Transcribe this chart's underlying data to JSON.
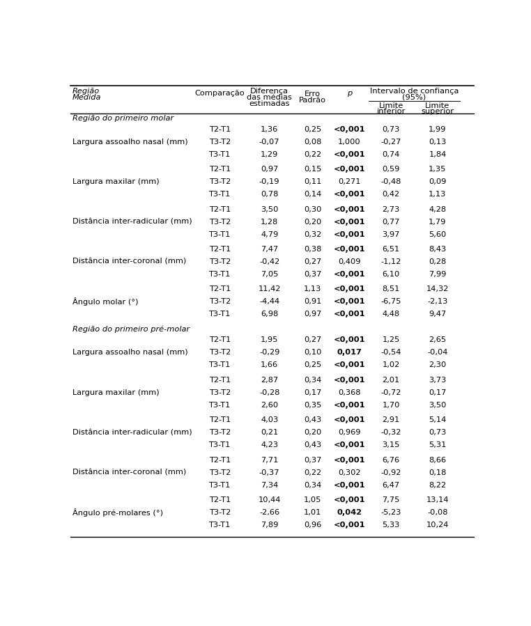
{
  "sections": [
    {
      "section_title": "Região do primeiro molar",
      "measures": [
        {
          "name": "Largura assoalho nasal (mm)",
          "rows": [
            [
              "T2-T1",
              "1,36",
              "0,25",
              "<0,001",
              "0,73",
              "1,99"
            ],
            [
              "T3-T2",
              "-0,07",
              "0,08",
              "1,000",
              "-0,27",
              "0,13"
            ],
            [
              "T3-T1",
              "1,29",
              "0,22",
              "<0,001",
              "0,74",
              "1,84"
            ]
          ],
          "bold_p": [
            true,
            false,
            true
          ]
        },
        {
          "name": "Largura maxilar (mm)",
          "rows": [
            [
              "T2-T1",
              "0,97",
              "0,15",
              "<0,001",
              "0,59",
              "1,35"
            ],
            [
              "T3-T2",
              "-0,19",
              "0,11",
              "0,271",
              "-0,48",
              "0,09"
            ],
            [
              "T3-T1",
              "0,78",
              "0,14",
              "<0,001",
              "0,42",
              "1,13"
            ]
          ],
          "bold_p": [
            true,
            false,
            true
          ]
        },
        {
          "name": "Distância inter-radicular (mm)",
          "rows": [
            [
              "T2-T1",
              "3,50",
              "0,30",
              "<0,001",
              "2,73",
              "4,28"
            ],
            [
              "T3-T2",
              "1,28",
              "0,20",
              "<0,001",
              "0,77",
              "1,79"
            ],
            [
              "T3-T1",
              "4,79",
              "0,32",
              "<0,001",
              "3,97",
              "5,60"
            ]
          ],
          "bold_p": [
            true,
            true,
            true
          ]
        },
        {
          "name": "Distância inter-coronal (mm)",
          "rows": [
            [
              "T2-T1",
              "7,47",
              "0,38",
              "<0,001",
              "6,51",
              "8,43"
            ],
            [
              "T3-T2",
              "-0,42",
              "0,27",
              "0,409",
              "-1,12",
              "0,28"
            ],
            [
              "T3-T1",
              "7,05",
              "0,37",
              "<0,001",
              "6,10",
              "7,99"
            ]
          ],
          "bold_p": [
            true,
            false,
            true
          ]
        },
        {
          "name": "Ângulo molar (°)",
          "rows": [
            [
              "T2-T1",
              "11,42",
              "1,13",
              "<0,001",
              "8,51",
              "14,32"
            ],
            [
              "T3-T2",
              "-4,44",
              "0,91",
              "<0,001",
              "-6,75",
              "-2,13"
            ],
            [
              "T3-T1",
              "6,98",
              "0,97",
              "<0,001",
              "4,48",
              "9,47"
            ]
          ],
          "bold_p": [
            true,
            true,
            true
          ]
        }
      ]
    },
    {
      "section_title": "Região do primeiro pré-molar",
      "measures": [
        {
          "name": "Largura assoalho nasal (mm)",
          "rows": [
            [
              "T2-T1",
              "1,95",
              "0,27",
              "<0,001",
              "1,25",
              "2,65"
            ],
            [
              "T3-T2",
              "-0,29",
              "0,10",
              "0,017",
              "-0,54",
              "-0,04"
            ],
            [
              "T3-T1",
              "1,66",
              "0,25",
              "<0,001",
              "1,02",
              "2,30"
            ]
          ],
          "bold_p": [
            true,
            true,
            true
          ]
        },
        {
          "name": "Largura maxilar (mm)",
          "rows": [
            [
              "T2-T1",
              "2,87",
              "0,34",
              "<0,001",
              "2,01",
              "3,73"
            ],
            [
              "T3-T2",
              "-0,28",
              "0,17",
              "0,368",
              "-0,72",
              "0,17"
            ],
            [
              "T3-T1",
              "2,60",
              "0,35",
              "<0,001",
              "1,70",
              "3,50"
            ]
          ],
          "bold_p": [
            true,
            false,
            true
          ]
        },
        {
          "name": "Distância inter-radicular (mm)",
          "rows": [
            [
              "T2-T1",
              "4,03",
              "0,43",
              "<0,001",
              "2,91",
              "5,14"
            ],
            [
              "T3-T2",
              "0,21",
              "0,20",
              "0,969",
              "-0,32",
              "0,73"
            ],
            [
              "T3-T1",
              "4,23",
              "0,43",
              "<0,001",
              "3,15",
              "5,31"
            ]
          ],
          "bold_p": [
            true,
            false,
            true
          ]
        },
        {
          "name": "Distância inter-coronal (mm)",
          "rows": [
            [
              "T2-T1",
              "7,71",
              "0,37",
              "<0,001",
              "6,76",
              "8,66"
            ],
            [
              "T3-T2",
              "-0,37",
              "0,22",
              "0,302",
              "-0,92",
              "0,18"
            ],
            [
              "T3-T1",
              "7,34",
              "0,34",
              "<0,001",
              "6,47",
              "8,22"
            ]
          ],
          "bold_p": [
            true,
            false,
            true
          ]
        },
        {
          "name": "Ângulo pré-molares (°)",
          "rows": [
            [
              "T2-T1",
              "10,44",
              "1,05",
              "<0,001",
              "7,75",
              "13,14"
            ],
            [
              "T3-T2",
              "-2,66",
              "1,01",
              "0,042",
              "-5,23",
              "-0,08"
            ],
            [
              "T3-T1",
              "7,89",
              "0,96",
              "<0,001",
              "5,33",
              "10,24"
            ]
          ],
          "bold_p": [
            true,
            true,
            true
          ]
        }
      ]
    }
  ],
  "font_size": 8.2,
  "background_color": "#ffffff",
  "text_color": "#000000",
  "line_color": "#000000"
}
